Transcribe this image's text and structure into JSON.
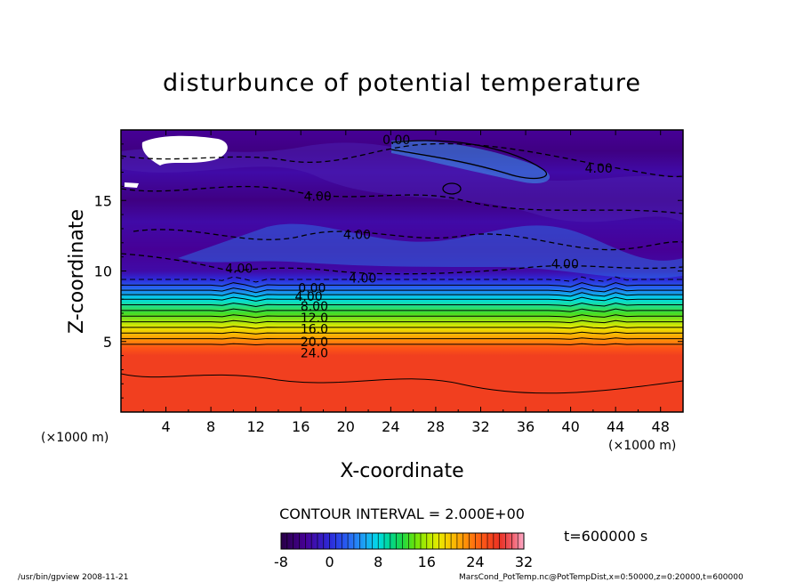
{
  "chart_data": {
    "type": "heatmap",
    "title": "disturbunce of potential temperature",
    "xlabel": "X-coordinate",
    "ylabel": "Z-coordinate",
    "x_unit": "(×1000 m)",
    "y_unit": "(×1000 m)",
    "xlim": [
      0,
      50
    ],
    "ylim": [
      0,
      20
    ],
    "x_ticks": [
      4,
      8,
      12,
      16,
      20,
      24,
      28,
      32,
      36,
      40,
      44,
      48
    ],
    "y_ticks": [
      5,
      10,
      15
    ],
    "contour_interval_text": "CONTOUR INTERVAL = 2.000E+00",
    "time_label": "t=600000 s",
    "colorbar": {
      "min": -8,
      "max": 32,
      "ticks": [
        -8,
        0,
        8,
        16,
        24,
        32
      ]
    },
    "contour_labels": [
      {
        "text": "0.00",
        "x": 24.5,
        "z": 19.3
      },
      {
        "text": "4.00",
        "x": 42.5,
        "z": 17.3
      },
      {
        "text": "4.00",
        "x": 17.5,
        "z": 15.3
      },
      {
        "text": "4.00",
        "x": 21.0,
        "z": 12.6
      },
      {
        "text": "4.00",
        "x": 10.5,
        "z": 10.2
      },
      {
        "text": "4.00",
        "x": 39.5,
        "z": 10.5
      },
      {
        "text": "4.00",
        "x": 21.5,
        "z": 9.5
      },
      {
        "text": "0.00",
        "x": 17.0,
        "z": 8.8
      },
      {
        "text": "4.00",
        "x": 16.7,
        "z": 8.2
      },
      {
        "text": "8.00",
        "x": 17.2,
        "z": 7.5
      },
      {
        "text": "12.0",
        "x": 17.2,
        "z": 6.7
      },
      {
        "text": "16.0",
        "x": 17.2,
        "z": 5.9
      },
      {
        "text": "20.0",
        "x": 17.2,
        "z": 5.0
      },
      {
        "text": "24.0",
        "x": 17.2,
        "z": 4.2
      }
    ],
    "field_profile": [
      {
        "z": 0.0,
        "value": 27
      },
      {
        "z": 4.0,
        "value": 27
      },
      {
        "z": 4.6,
        "value": 25
      },
      {
        "z": 5.2,
        "value": 22
      },
      {
        "z": 6.0,
        "value": 18
      },
      {
        "z": 7.0,
        "value": 13
      },
      {
        "z": 8.0,
        "value": 8
      },
      {
        "z": 8.8,
        "value": 3
      },
      {
        "z": 9.4,
        "value": 0
      },
      {
        "z": 10.0,
        "value": -3
      },
      {
        "z": 11.5,
        "value": -4
      },
      {
        "z": 13.5,
        "value": -3
      },
      {
        "z": 15.0,
        "value": -5
      },
      {
        "z": 17.0,
        "value": -3
      },
      {
        "z": 18.5,
        "value": -5
      },
      {
        "z": 20.0,
        "value": -4
      }
    ]
  },
  "footer": {
    "left": "/usr/bin/gpview   2008-11-21",
    "right": "MarsCond_PotTemp.nc@PotTempDist,x=0:50000,z=0:20000,t=600000"
  }
}
